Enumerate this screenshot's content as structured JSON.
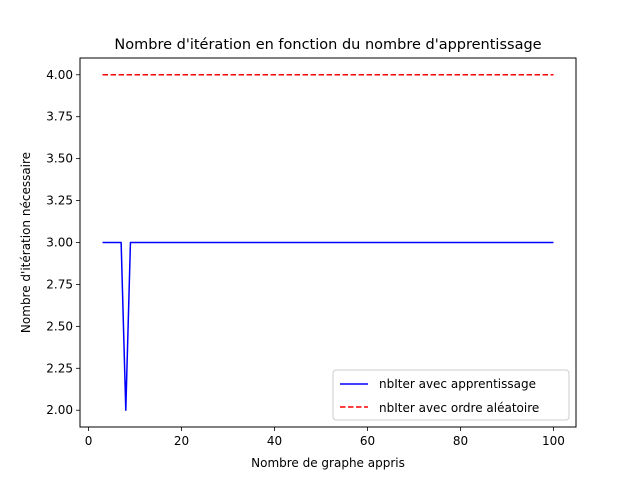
{
  "chart_data": {
    "type": "line",
    "title": "Nombre d'itération en fonction du nombre d'apprentissage",
    "xlabel": "Nombre de graphe appris",
    "ylabel": "Nombre d'itération nécessaire",
    "xlim": [
      -1.85,
      104.85
    ],
    "ylim": [
      1.9,
      4.1
    ],
    "xticks": [
      0,
      20,
      40,
      60,
      80,
      100
    ],
    "yticks": [
      2.0,
      2.25,
      2.5,
      2.75,
      3.0,
      3.25,
      3.5,
      3.75,
      4.0
    ],
    "xtick_labels": [
      "0",
      "20",
      "40",
      "60",
      "80",
      "100"
    ],
    "ytick_labels": [
      "2.00",
      "2.25",
      "2.50",
      "2.75",
      "3.00",
      "3.25",
      "3.50",
      "3.75",
      "4.00"
    ],
    "grid": false,
    "legend_position": "lower right",
    "series": [
      {
        "name": "nbIter avec apprentissage",
        "color": "#0000ff",
        "style": "solid",
        "points": [
          [
            3,
            3
          ],
          [
            7,
            3
          ],
          [
            8,
            2
          ],
          [
            9,
            3
          ],
          [
            100,
            3
          ]
        ]
      },
      {
        "name": "nbIter avec ordre aléatoire",
        "color": "#ff0000",
        "style": "dashed",
        "points": [
          [
            3,
            4
          ],
          [
            100,
            4
          ]
        ]
      }
    ]
  }
}
